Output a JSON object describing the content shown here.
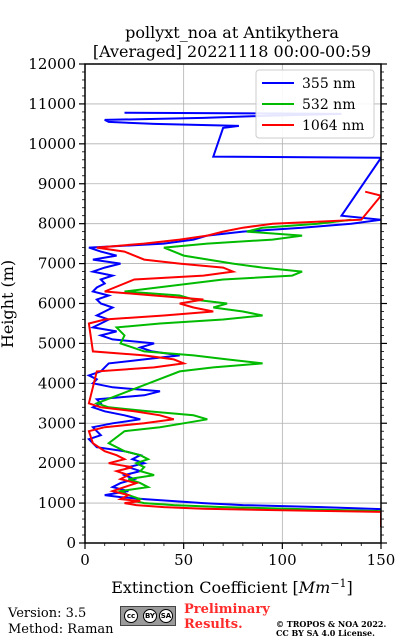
{
  "chart_data": {
    "type": "line",
    "title": "pollyxt_noa at Antikythera",
    "subtitle": "[Averaged] 20221118 00:00-00:59",
    "xlabel": "Extinction Coefficient [",
    "xlabel_unit": "Mm",
    "xlabel_exp": "−1",
    "xlabel_close": "]",
    "ylabel": "Height (m)",
    "xlim": [
      0,
      150
    ],
    "ylim": [
      0,
      12000
    ],
    "x_ticks": [
      0,
      50,
      100,
      150
    ],
    "y_ticks": [
      0,
      1000,
      2000,
      3000,
      4000,
      5000,
      6000,
      7000,
      8000,
      9000,
      10000,
      11000,
      12000
    ],
    "grid": true,
    "legend_position": "top-right",
    "series": [
      {
        "name": "355 nm",
        "color": "#0000ff",
        "points": [
          [
            150,
            450
          ],
          [
            150,
            850
          ],
          [
            120,
            900
          ],
          [
            80,
            950
          ],
          [
            60,
            1000
          ],
          [
            45,
            1050
          ],
          [
            30,
            1100
          ],
          [
            18,
            1150
          ],
          [
            10,
            1200
          ],
          [
            22,
            1300
          ],
          [
            14,
            1400
          ],
          [
            18,
            1500
          ],
          [
            25,
            1600
          ],
          [
            20,
            1700
          ],
          [
            28,
            1800
          ],
          [
            22,
            1900
          ],
          [
            30,
            2000
          ],
          [
            24,
            2100
          ],
          [
            28,
            2200
          ],
          [
            20,
            2300
          ],
          [
            6,
            2400
          ],
          [
            2,
            2600
          ],
          [
            8,
            2700
          ],
          [
            4,
            2900
          ],
          [
            14,
            3000
          ],
          [
            28,
            3100
          ],
          [
            20,
            3200
          ],
          [
            10,
            3300
          ],
          [
            4,
            3400
          ],
          [
            8,
            3500
          ],
          [
            6,
            3600
          ],
          [
            30,
            3700
          ],
          [
            38,
            3800
          ],
          [
            14,
            3900
          ],
          [
            4,
            4000
          ],
          [
            6,
            4100
          ],
          [
            2,
            4200
          ],
          [
            8,
            4300
          ],
          [
            10,
            4400
          ],
          [
            12,
            4500
          ],
          [
            30,
            4600
          ],
          [
            48,
            4700
          ],
          [
            34,
            4800
          ],
          [
            28,
            4900
          ],
          [
            35,
            5000
          ],
          [
            14,
            5100
          ],
          [
            8,
            5200
          ],
          [
            16,
            5300
          ],
          [
            4,
            5400
          ],
          [
            8,
            5500
          ],
          [
            12,
            5600
          ],
          [
            6,
            5700
          ],
          [
            10,
            5800
          ],
          [
            14,
            5900
          ],
          [
            8,
            6000
          ],
          [
            6,
            6100
          ],
          [
            12,
            6200
          ],
          [
            4,
            6300
          ],
          [
            6,
            6400
          ],
          [
            10,
            6500
          ],
          [
            8,
            6600
          ],
          [
            14,
            6700
          ],
          [
            4,
            6800
          ],
          [
            10,
            6900
          ],
          [
            18,
            7000
          ],
          [
            4,
            7100
          ],
          [
            16,
            7200
          ],
          [
            8,
            7300
          ],
          [
            2,
            7400
          ],
          [
            40,
            7500
          ],
          [
            55,
            7600
          ],
          [
            62,
            7700
          ],
          [
            80,
            7800
          ],
          [
            110,
            7900
          ],
          [
            135,
            8000
          ],
          [
            150,
            8100
          ],
          [
            130,
            8200
          ],
          [
            150,
            9650
          ],
          [
            65,
            9680
          ],
          [
            70,
            10400
          ],
          [
            78,
            10450
          ],
          [
            35,
            10500
          ],
          [
            12,
            10550
          ],
          [
            10,
            10600
          ],
          [
            60,
            10650
          ],
          [
            90,
            10700
          ],
          [
            130,
            10750
          ],
          [
            20,
            10780
          ]
        ]
      },
      {
        "name": "532 nm",
        "color": "#00bb00",
        "points": [
          [
            150,
            420
          ],
          [
            150,
            800
          ],
          [
            110,
            850
          ],
          [
            70,
            900
          ],
          [
            45,
            950
          ],
          [
            30,
            1000
          ],
          [
            25,
            1050
          ],
          [
            28,
            1100
          ],
          [
            22,
            1200
          ],
          [
            18,
            1300
          ],
          [
            32,
            1400
          ],
          [
            28,
            1500
          ],
          [
            22,
            1600
          ],
          [
            35,
            1700
          ],
          [
            28,
            1800
          ],
          [
            30,
            1900
          ],
          [
            26,
            2000
          ],
          [
            32,
            2100
          ],
          [
            28,
            2200
          ],
          [
            20,
            2300
          ],
          [
            12,
            2500
          ],
          [
            20,
            2800
          ],
          [
            38,
            2900
          ],
          [
            50,
            3000
          ],
          [
            62,
            3100
          ],
          [
            55,
            3200
          ],
          [
            32,
            3300
          ],
          [
            12,
            3400
          ],
          [
            6,
            3500
          ],
          [
            48,
            4300
          ],
          [
            65,
            4400
          ],
          [
            90,
            4500
          ],
          [
            72,
            4600
          ],
          [
            55,
            4700
          ],
          [
            30,
            4800
          ],
          [
            18,
            5000
          ],
          [
            20,
            5200
          ],
          [
            16,
            5400
          ],
          [
            38,
            5500
          ],
          [
            70,
            5600
          ],
          [
            90,
            5700
          ],
          [
            80,
            5800
          ],
          [
            65,
            5900
          ],
          [
            72,
            6000
          ],
          [
            55,
            6100
          ],
          [
            48,
            6200
          ],
          [
            20,
            6300
          ],
          [
            70,
            6600
          ],
          [
            105,
            6700
          ],
          [
            110,
            6800
          ],
          [
            90,
            6900
          ],
          [
            75,
            7000
          ],
          [
            50,
            7200
          ],
          [
            40,
            7400
          ],
          [
            62,
            7500
          ],
          [
            95,
            7600
          ],
          [
            110,
            7700
          ],
          [
            82,
            7800
          ],
          [
            90,
            7900
          ],
          [
            118,
            8000
          ],
          [
            135,
            8100
          ]
        ]
      },
      {
        "name": "1064 nm",
        "color": "#ff0000",
        "points": [
          [
            150,
            400
          ],
          [
            150,
            780
          ],
          [
            100,
            820
          ],
          [
            60,
            860
          ],
          [
            40,
            900
          ],
          [
            26,
            950
          ],
          [
            20,
            1000
          ],
          [
            28,
            1050
          ],
          [
            18,
            1100
          ],
          [
            22,
            1200
          ],
          [
            14,
            1300
          ],
          [
            20,
            1400
          ],
          [
            26,
            1500
          ],
          [
            18,
            1600
          ],
          [
            22,
            1700
          ],
          [
            16,
            1800
          ],
          [
            24,
            1900
          ],
          [
            12,
            2000
          ],
          [
            20,
            2100
          ],
          [
            16,
            2200
          ],
          [
            10,
            2300
          ],
          [
            4,
            2500
          ],
          [
            2,
            2800
          ],
          [
            10,
            2900
          ],
          [
            30,
            3000
          ],
          [
            45,
            3100
          ],
          [
            38,
            3200
          ],
          [
            25,
            3300
          ],
          [
            8,
            3400
          ],
          [
            2,
            3500
          ],
          [
            6,
            4300
          ],
          [
            35,
            4400
          ],
          [
            50,
            4500
          ],
          [
            45,
            4600
          ],
          [
            30,
            4700
          ],
          [
            4,
            4800
          ],
          [
            2,
            5500
          ],
          [
            10,
            5600
          ],
          [
            40,
            5700
          ],
          [
            65,
            5800
          ],
          [
            55,
            5900
          ],
          [
            48,
            6000
          ],
          [
            60,
            6100
          ],
          [
            35,
            6200
          ],
          [
            10,
            6300
          ],
          [
            25,
            6600
          ],
          [
            60,
            6700
          ],
          [
            75,
            6800
          ],
          [
            70,
            6900
          ],
          [
            48,
            7000
          ],
          [
            30,
            7100
          ],
          [
            20,
            7300
          ],
          [
            6,
            7400
          ],
          [
            30,
            7500
          ],
          [
            48,
            7600
          ],
          [
            62,
            7700
          ],
          [
            70,
            7800
          ],
          [
            80,
            7900
          ],
          [
            95,
            8000
          ],
          [
            140,
            8100
          ],
          [
            150,
            8700
          ],
          [
            142,
            8800
          ]
        ]
      }
    ]
  },
  "footer": {
    "version": "Version: 3.5",
    "method": "Method: Raman",
    "preliminary_line1": "Preliminary",
    "preliminary_line2": "Results.",
    "copyright_line1": "© TROPOS & NOA 2022.",
    "copyright_line2": "CC BY SA 4.0 License.",
    "badge_cc": "cc",
    "badge_by": "BY",
    "badge_sa": "SA"
  }
}
